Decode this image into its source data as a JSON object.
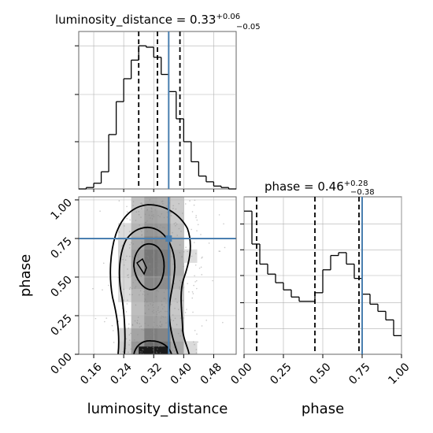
{
  "chart_data": [
    {
      "type": "histogram",
      "panel": "luminosity_distance marginal",
      "title": {
        "base": "luminosity_distance = 0.33",
        "sup": "+0.06",
        "sub": "−0.05"
      },
      "xlim": [
        0.12,
        0.54
      ],
      "bins": [
        0.12,
        0.14,
        0.16,
        0.18,
        0.2,
        0.22,
        0.24,
        0.26,
        0.28,
        0.3,
        0.32,
        0.34,
        0.36,
        0.38,
        0.4,
        0.42,
        0.44,
        0.46,
        0.48,
        0.5,
        0.52,
        0.54
      ],
      "counts": [
        0.0,
        0.01,
        0.04,
        0.12,
        0.38,
        0.61,
        0.77,
        0.9,
        1.0,
        0.99,
        0.92,
        0.8,
        0.68,
        0.49,
        0.33,
        0.19,
        0.09,
        0.05,
        0.02,
        0.01,
        0.0
      ],
      "quantile_lines": [
        0.28,
        0.33,
        0.39
      ],
      "truth": 0.36,
      "grid": true
    },
    {
      "type": "histogram",
      "panel": "phase marginal",
      "title": {
        "base": "phase = 0.46",
        "sup": "+0.28",
        "sub": "−0.38"
      },
      "xlim": [
        0.0,
        1.0
      ],
      "xticks": [
        "0.00",
        "0.25",
        "0.50",
        "0.75",
        "1.00"
      ],
      "xlabel": "phase",
      "bins": [
        0.0,
        0.05,
        0.1,
        0.15,
        0.2,
        0.25,
        0.3,
        0.35,
        0.4,
        0.45,
        0.5,
        0.55,
        0.6,
        0.65,
        0.7,
        0.75,
        0.8,
        0.85,
        0.9,
        0.95,
        1.0
      ],
      "counts": [
        1.0,
        0.77,
        0.63,
        0.56,
        0.5,
        0.45,
        0.4,
        0.37,
        0.37,
        0.43,
        0.59,
        0.69,
        0.71,
        0.63,
        0.53,
        0.42,
        0.35,
        0.3,
        0.24,
        0.13
      ],
      "ylim": [
        0,
        1.1
      ],
      "quantile_lines": [
        0.08,
        0.45,
        0.73
      ],
      "truth": 0.75,
      "grid": true
    },
    {
      "type": "scatter",
      "panel": "2D joint density",
      "xlim": [
        0.12,
        0.54
      ],
      "ylim": [
        0.0,
        1.02
      ],
      "xticks": [
        "0.16",
        "0.24",
        "0.32",
        "0.40",
        "0.48"
      ],
      "yticks": [
        "0.00",
        "0.25",
        "0.50",
        "0.75",
        "1.00"
      ],
      "xlabel": "luminosity_distance",
      "ylabel": "phase",
      "truth": {
        "x": 0.36,
        "y": 0.75
      },
      "grid": true
    }
  ],
  "colors": {
    "truth": "#4a7fb0",
    "line": "#000000",
    "grid": "#b0b0b0"
  }
}
